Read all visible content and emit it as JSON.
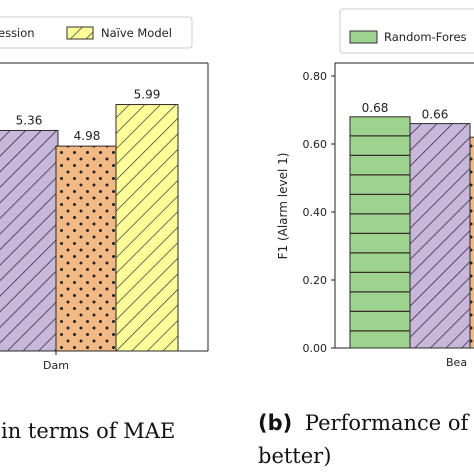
{
  "colors": {
    "purple": "#c7b7d8",
    "orange": "#f2b985",
    "yellow": "#ffff9a",
    "green": "#9ed28f",
    "edge": "#3b2d50"
  },
  "chart_data": [
    {
      "type": "bar",
      "xlabel": "",
      "ylabel": "",
      "categories": [
        "Dam"
      ],
      "ylim": [
        0,
        7
      ],
      "grid": false,
      "legend_position": "top",
      "series": [
        {
          "name": "ession",
          "values": [
            5.36
          ],
          "color": "#c7b7d8",
          "hatch": "diagonal"
        },
        {
          "name": "",
          "values": [
            4.98
          ],
          "color": "#f2b985",
          "hatch": "dots"
        },
        {
          "name": "Naïve Model",
          "values": [
            5.99
          ],
          "color": "#ffff9a",
          "hatch": "diagonal"
        }
      ],
      "data_labels": [
        "5.36",
        "4.98",
        "5.99"
      ],
      "caption": "in terms of MAE"
    },
    {
      "type": "bar",
      "xlabel": "",
      "ylabel": "F1 (Alarm level 1)",
      "categories": [
        "Bea"
      ],
      "ylim": [
        0,
        0.85
      ],
      "grid": false,
      "legend_position": "top",
      "yticks": [
        "0.00",
        "0.20",
        "0.40",
        "0.60",
        "0.80"
      ],
      "series": [
        {
          "name": "Random-Fores",
          "values": [
            0.68
          ],
          "color": "#9ed28f",
          "hatch": "horizontal"
        },
        {
          "name": "",
          "values": [
            0.66
          ],
          "color": "#c7b7d8",
          "hatch": "diagonal"
        },
        {
          "name": "",
          "values": [
            0.62
          ],
          "color": "#f2b985",
          "hatch": "dots"
        }
      ],
      "data_labels": [
        "0.68",
        "0.66"
      ],
      "caption_prefix": "(b)",
      "caption": "Performance of a",
      "caption_line2": "better)"
    }
  ]
}
